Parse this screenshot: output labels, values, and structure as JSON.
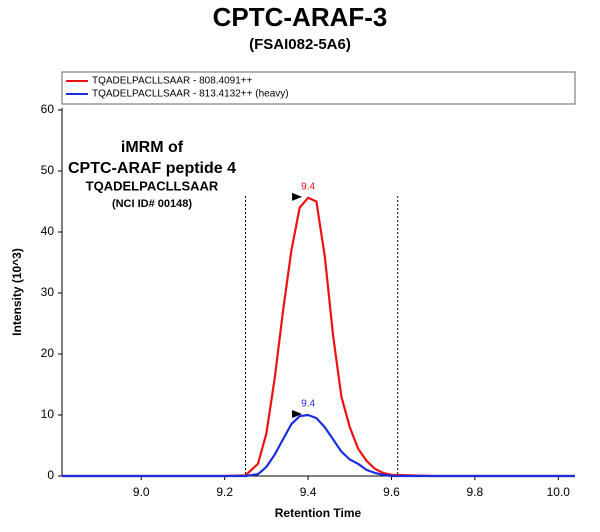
{
  "chart_data": {
    "type": "line",
    "title": "CPTC-ARAF-3",
    "subtitle": "(FSAI082-5A6)",
    "xlabel": "Retention Time",
    "ylabel": "Intensity (10^3)",
    "annotation": [
      "iMRM of",
      "CPTC-ARAF peptide 4",
      "TQADELPACLLSAAR",
      "(NCI ID# 00148)"
    ],
    "x": [
      8.81,
      9.2,
      9.25,
      9.28,
      9.3,
      9.32,
      9.34,
      9.36,
      9.38,
      9.4,
      9.42,
      9.44,
      9.46,
      9.48,
      9.5,
      9.52,
      9.54,
      9.56,
      9.58,
      9.6,
      9.7,
      10.04
    ],
    "series": [
      {
        "name": "TQADELPACLLSAAR - 808.4091++",
        "color": "#ee1111",
        "values": [
          0,
          0,
          0.1,
          2,
          7,
          16,
          27,
          37,
          44,
          45.6,
          45,
          36,
          23,
          13,
          8,
          4.5,
          2.5,
          1.2,
          0.5,
          0.2,
          0,
          0
        ],
        "peak_rt": 9.4
      },
      {
        "name": "TQADELPACLLSAAR - 813.4132++ (heavy)",
        "color": "#1a2ee0",
        "values": [
          0,
          0,
          0,
          0.3,
          1.5,
          3.5,
          6,
          8.5,
          9.8,
          10,
          9.5,
          8,
          6,
          4,
          2.7,
          2,
          1,
          0.5,
          0.2,
          0,
          0,
          0
        ],
        "peak_rt": 9.4
      }
    ],
    "boundaries": [
      9.25,
      9.615
    ],
    "xlim": [
      8.81,
      10.04
    ],
    "ylim": [
      0,
      60
    ],
    "xticks": [
      {
        "value": 9,
        "label": "9.0"
      },
      9.2,
      9.4,
      9.6,
      9.8,
      {
        "value": 10,
        "label": "10.0"
      }
    ],
    "yticks": [
      0,
      10,
      20,
      30,
      40,
      50,
      60
    ]
  }
}
